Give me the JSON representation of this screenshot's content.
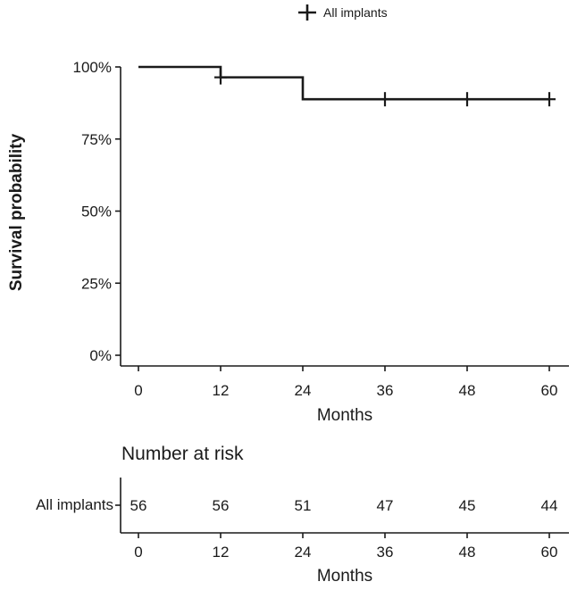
{
  "chart_data": {
    "type": "line",
    "chart_kind": "Kaplan-Meier survival curve",
    "legend": {
      "label": "All implants",
      "placement": "top"
    },
    "xlabel": "Months",
    "ylabel": "Survival probability",
    "xlim": [
      0,
      60
    ],
    "ylim": [
      0,
      1
    ],
    "x_ticks": [
      0,
      12,
      24,
      36,
      48,
      60
    ],
    "x_tick_labels": [
      "0",
      "12",
      "24",
      "36",
      "48",
      "60"
    ],
    "y_ticks": [
      0,
      0.25,
      0.5,
      0.75,
      1.0
    ],
    "y_tick_labels": [
      "0%",
      "25%",
      "50%",
      "75%",
      "100%"
    ],
    "grid": false,
    "series": [
      {
        "name": "All implants",
        "step_points": [
          {
            "x": 0,
            "y": 1.0
          },
          {
            "x": 12,
            "y": 1.0
          },
          {
            "x": 12,
            "y": 0.964
          },
          {
            "x": 24,
            "y": 0.964
          },
          {
            "x": 24,
            "y": 0.888
          },
          {
            "x": 60,
            "y": 0.888
          }
        ],
        "censor_marks": [
          {
            "x": 12,
            "y": 0.964
          },
          {
            "x": 36,
            "y": 0.888
          },
          {
            "x": 48,
            "y": 0.888
          },
          {
            "x": 60,
            "y": 0.888
          }
        ]
      }
    ],
    "risk_table": {
      "title": "Number at risk",
      "row_label": "All implants",
      "times": [
        0,
        12,
        24,
        36,
        48,
        60
      ],
      "values": [
        "56",
        "56",
        "51",
        "47",
        "45",
        "44"
      ],
      "xlabel": "Months"
    }
  }
}
